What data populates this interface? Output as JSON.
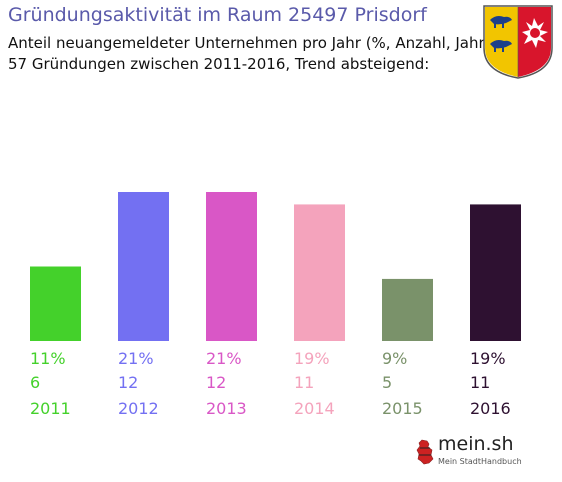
{
  "chart_data": {
    "type": "bar",
    "title": "Gründungsaktivität im Raum 25497 Prisdorf",
    "subtitle": [
      "Anteil neuangemeldeter Unternehmen pro Jahr (%, Anzahl, Jahr)",
      "57 Gründungen zwischen 2011-2016, Trend absteigend:"
    ],
    "categories": [
      "2011",
      "2012",
      "2013",
      "2014",
      "2015",
      "2016"
    ],
    "values": [
      6,
      12,
      12,
      11,
      5,
      11
    ],
    "percent_labels": [
      "11%",
      "21%",
      "21%",
      "19%",
      "9%",
      "19%"
    ],
    "count_labels": [
      "6",
      "12",
      "12",
      "11",
      "5",
      "11"
    ],
    "colors": [
      "#44d12b",
      "#7370f2",
      "#d957c6",
      "#f4a3bc",
      "#7a926a",
      "#2e1131"
    ],
    "ylim": [
      0,
      12
    ],
    "grid": false,
    "legend": "none"
  },
  "branding": {
    "name": "mein.sh",
    "tagline": "Mein StadtHandbuch"
  },
  "icons": {
    "coat_of_arms": "schleswig-holstein-coat-of-arms-icon",
    "brand_map": "germany-map-icon"
  }
}
